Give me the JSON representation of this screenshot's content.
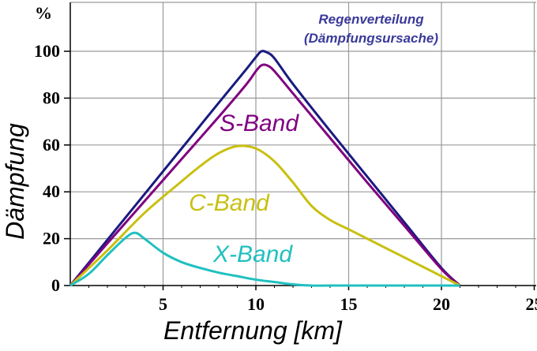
{
  "chart_data": {
    "type": "line",
    "title": "",
    "xlabel": "Entfernung [km]",
    "ylabel": "Dämpfung",
    "y_unit_label": "%",
    "xlim": [
      0,
      25
    ],
    "ylim": [
      0,
      100
    ],
    "x_ticks": [
      5,
      10,
      15,
      20,
      25
    ],
    "y_ticks": [
      0,
      20,
      40,
      60,
      80,
      100
    ],
    "x_tick_labels": [
      "5",
      "10",
      "15",
      "20",
      "25"
    ],
    "y_tick_labels": [
      "0",
      "20",
      "40",
      "60",
      "80",
      "100"
    ],
    "grid": true,
    "annotation": [
      "Regenverteilung",
      "(Dämpfungsursache)"
    ],
    "series": [
      {
        "name": "",
        "color": "#1a1a80",
        "x": [
          0,
          2,
          4,
          6,
          8,
          9.5,
          10,
          10.3,
          10.6,
          11,
          12,
          14,
          16,
          18,
          20,
          21
        ],
        "y": [
          0,
          19.5,
          39,
          58.5,
          78,
          92.5,
          97.5,
          100,
          99.5,
          97,
          86,
          66,
          46.5,
          27,
          7.5,
          0
        ]
      },
      {
        "name": "S-Band",
        "color": "#800080",
        "x": [
          0,
          2,
          4,
          6,
          8,
          9.5,
          10,
          10.3,
          10.6,
          11,
          12,
          14,
          16,
          18,
          20,
          21
        ],
        "y": [
          0,
          18,
          36,
          54,
          72,
          86,
          91.5,
          94,
          94,
          91.5,
          82,
          63,
          44,
          25.5,
          7,
          0
        ]
      },
      {
        "name": "C-Band",
        "color": "#c8c010",
        "x": [
          0,
          2,
          4,
          6,
          7,
          8,
          9,
          10,
          11,
          12,
          13,
          14,
          15,
          16,
          17,
          18,
          19,
          20,
          21
        ],
        "y": [
          0,
          15,
          31,
          44.5,
          51,
          56.5,
          59.5,
          58.5,
          53,
          44,
          34,
          28,
          24,
          20,
          16,
          12,
          8,
          4,
          0
        ]
      },
      {
        "name": "X-Band",
        "color": "#20c0c0",
        "x": [
          0,
          1,
          2,
          3,
          3.5,
          4,
          5,
          6,
          7,
          8,
          9,
          10,
          11,
          12,
          13,
          14,
          16,
          18,
          21
        ],
        "y": [
          0,
          5,
          13,
          20.5,
          22.5,
          20,
          14,
          10,
          7.5,
          5.5,
          4,
          2.5,
          1.5,
          0.5,
          0,
          0,
          0,
          0,
          0
        ]
      }
    ]
  }
}
